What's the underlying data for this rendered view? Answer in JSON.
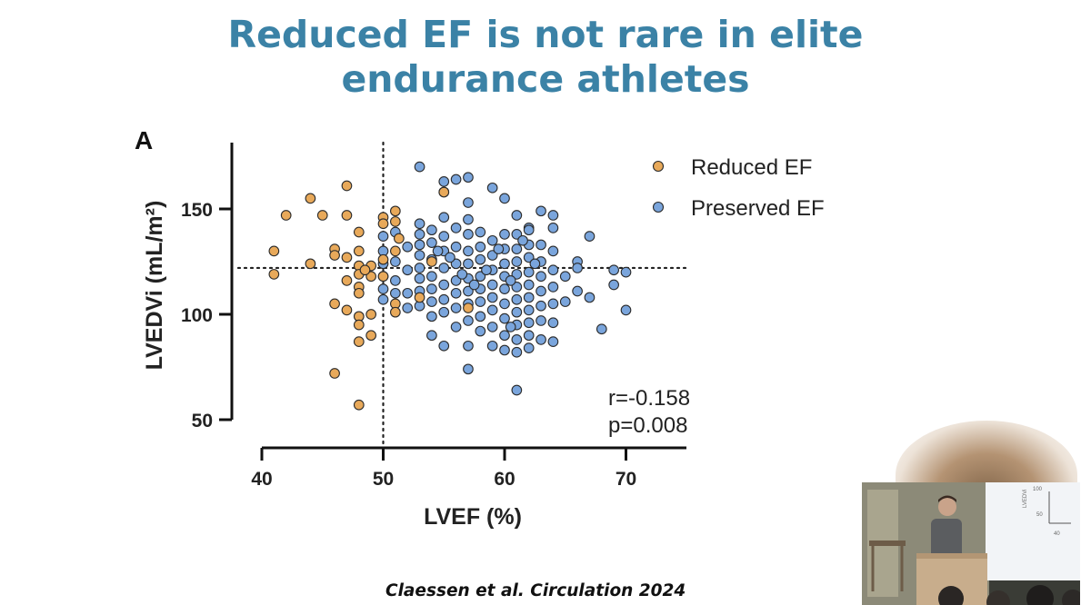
{
  "slide": {
    "title_line1": "Reduced EF is not rare in elite",
    "title_line2": "endurance athletes",
    "citation": "Claessen et al. Circulation 2024",
    "panel_label": "A"
  },
  "colors": {
    "title": "#3b82a6",
    "reduced": "#e8a95a",
    "preserved": "#7aa5dc",
    "marker_edge": "#2b2b2b"
  },
  "chart_data": {
    "type": "scatter",
    "xlabel": "LVEF (%)",
    "ylabel": "LVEDVi (mL/m²)",
    "xlim": [
      38,
      75
    ],
    "ylim": [
      45,
      180
    ],
    "x_ticks": [
      40,
      50,
      60,
      70
    ],
    "y_ticks": [
      50,
      100,
      150
    ],
    "reference_lines": {
      "x": 50,
      "y": 122
    },
    "legend_position": "top-right",
    "stats": {
      "r": "r=-0.158",
      "p": "p=0.008"
    },
    "series": [
      {
        "name": "Reduced EF",
        "points": [
          [
            41,
            130
          ],
          [
            41,
            119
          ],
          [
            42,
            147
          ],
          [
            44,
            155
          ],
          [
            44,
            124
          ],
          [
            45,
            147
          ],
          [
            46,
            131
          ],
          [
            46,
            128
          ],
          [
            46,
            105
          ],
          [
            46,
            72
          ],
          [
            47,
            161
          ],
          [
            47,
            147
          ],
          [
            47,
            127
          ],
          [
            47,
            116
          ],
          [
            47,
            102
          ],
          [
            48,
            139
          ],
          [
            48,
            130
          ],
          [
            48,
            123
          ],
          [
            48,
            119
          ],
          [
            48,
            113
          ],
          [
            48,
            110
          ],
          [
            48,
            99
          ],
          [
            48,
            95
          ],
          [
            48,
            87
          ],
          [
            48,
            57
          ],
          [
            49,
            123
          ],
          [
            49,
            118
          ],
          [
            49,
            100
          ],
          [
            49,
            90
          ],
          [
            50,
            146
          ],
          [
            50,
            143
          ],
          [
            50,
            126
          ],
          [
            50,
            118
          ],
          [
            51,
            149
          ],
          [
            51,
            144
          ],
          [
            51,
            130
          ],
          [
            51,
            105
          ],
          [
            51,
            101
          ],
          [
            53,
            108
          ],
          [
            55,
            158
          ],
          [
            54,
            125
          ],
          [
            57,
            103
          ],
          [
            48.5,
            121
          ],
          [
            51.3,
            136
          ]
        ]
      },
      {
        "name": "Preserved EF",
        "points": [
          [
            53,
            170
          ],
          [
            55,
            163
          ],
          [
            56,
            164
          ],
          [
            57,
            165
          ],
          [
            55,
            158
          ],
          [
            59,
            160
          ],
          [
            60,
            155
          ],
          [
            57,
            153
          ],
          [
            61,
            147
          ],
          [
            62,
            141
          ],
          [
            63,
            149
          ],
          [
            64,
            147
          ],
          [
            64,
            141
          ],
          [
            50,
            137
          ],
          [
            50,
            130
          ],
          [
            50,
            124
          ],
          [
            50,
            118
          ],
          [
            50,
            112
          ],
          [
            50,
            107
          ],
          [
            51,
            139
          ],
          [
            51,
            125
          ],
          [
            51,
            116
          ],
          [
            51,
            110
          ],
          [
            52,
            132
          ],
          [
            52,
            121
          ],
          [
            52,
            110
          ],
          [
            52,
            103
          ],
          [
            53,
            143
          ],
          [
            53,
            138
          ],
          [
            53,
            133
          ],
          [
            53,
            128
          ],
          [
            53,
            122
          ],
          [
            53,
            117
          ],
          [
            53,
            111
          ],
          [
            53,
            104
          ],
          [
            54,
            140
          ],
          [
            54,
            134
          ],
          [
            54,
            126
          ],
          [
            54,
            118
          ],
          [
            54,
            112
          ],
          [
            54,
            106
          ],
          [
            54,
            99
          ],
          [
            54,
            90
          ],
          [
            55,
            146
          ],
          [
            55,
            137
          ],
          [
            55,
            130
          ],
          [
            55,
            122
          ],
          [
            55,
            114
          ],
          [
            55,
            107
          ],
          [
            55,
            101
          ],
          [
            55,
            85
          ],
          [
            56,
            141
          ],
          [
            56,
            132
          ],
          [
            56,
            124
          ],
          [
            56,
            116
          ],
          [
            56,
            110
          ],
          [
            56,
            103
          ],
          [
            56,
            94
          ],
          [
            57,
            145
          ],
          [
            57,
            138
          ],
          [
            57,
            130
          ],
          [
            57,
            124
          ],
          [
            57,
            117
          ],
          [
            57,
            111
          ],
          [
            57,
            105
          ],
          [
            57,
            97
          ],
          [
            57,
            85
          ],
          [
            57,
            74
          ],
          [
            58,
            139
          ],
          [
            58,
            132
          ],
          [
            58,
            126
          ],
          [
            58,
            118
          ],
          [
            58,
            112
          ],
          [
            58,
            106
          ],
          [
            58,
            99
          ],
          [
            58,
            92
          ],
          [
            59,
            135
          ],
          [
            59,
            128
          ],
          [
            59,
            121
          ],
          [
            59,
            114
          ],
          [
            59,
            108
          ],
          [
            59,
            102
          ],
          [
            59,
            94
          ],
          [
            59,
            85
          ],
          [
            60,
            138
          ],
          [
            60,
            131
          ],
          [
            60,
            124
          ],
          [
            60,
            118
          ],
          [
            60,
            112
          ],
          [
            60,
            105
          ],
          [
            60,
            98
          ],
          [
            60,
            90
          ],
          [
            60,
            83
          ],
          [
            61,
            138
          ],
          [
            61,
            131
          ],
          [
            61,
            125
          ],
          [
            61,
            119
          ],
          [
            61,
            113
          ],
          [
            61,
            107
          ],
          [
            61,
            101
          ],
          [
            61,
            95
          ],
          [
            61,
            88
          ],
          [
            61,
            82
          ],
          [
            61,
            64
          ],
          [
            62,
            140
          ],
          [
            62,
            133
          ],
          [
            62,
            127
          ],
          [
            62,
            120
          ],
          [
            62,
            114
          ],
          [
            62,
            108
          ],
          [
            62,
            102
          ],
          [
            62,
            96
          ],
          [
            62,
            90
          ],
          [
            62,
            84
          ],
          [
            63,
            133
          ],
          [
            63,
            125
          ],
          [
            63,
            118
          ],
          [
            63,
            111
          ],
          [
            63,
            104
          ],
          [
            63,
            97
          ],
          [
            63,
            88
          ],
          [
            64,
            130
          ],
          [
            64,
            121
          ],
          [
            64,
            113
          ],
          [
            64,
            105
          ],
          [
            64,
            96
          ],
          [
            64,
            87
          ],
          [
            65,
            118
          ],
          [
            65,
            106
          ],
          [
            66,
            125
          ],
          [
            66,
            122
          ],
          [
            66,
            111
          ],
          [
            67,
            137
          ],
          [
            67,
            108
          ],
          [
            68,
            93
          ],
          [
            69,
            121
          ],
          [
            69,
            114
          ],
          [
            70,
            120
          ],
          [
            70,
            102
          ],
          [
            58.5,
            121
          ],
          [
            59.5,
            131
          ],
          [
            60.5,
            116
          ],
          [
            61.5,
            135
          ],
          [
            55.5,
            127
          ],
          [
            56.5,
            119
          ],
          [
            54.5,
            130
          ],
          [
            62.5,
            124
          ],
          [
            60.5,
            94
          ],
          [
            57.5,
            114
          ]
        ]
      }
    ]
  },
  "inset": {
    "mini_ylabel": "LVEDVi",
    "mini_ticks": [
      "100",
      "50"
    ],
    "mini_xtick": "40"
  }
}
